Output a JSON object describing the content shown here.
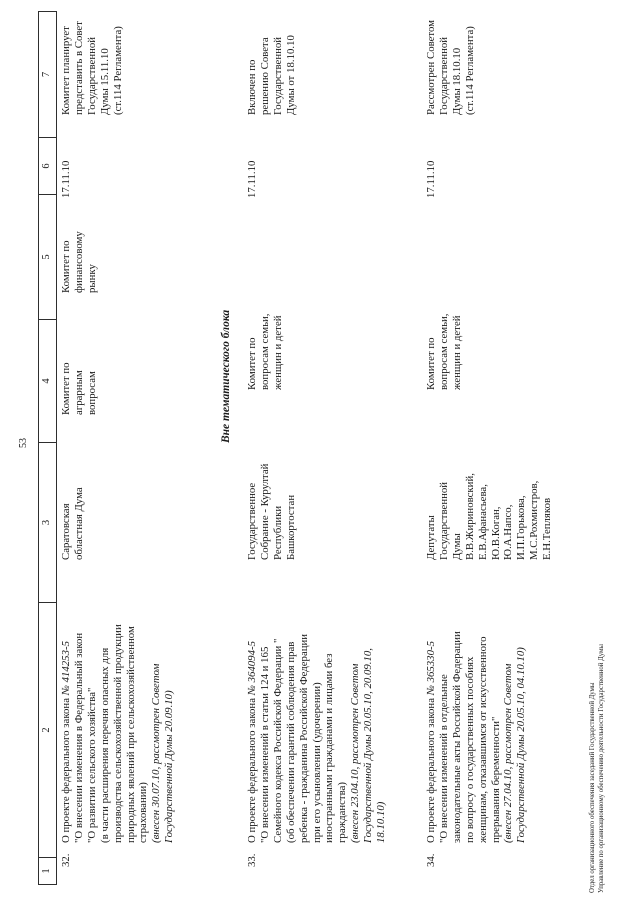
{
  "page": {
    "number": "53",
    "footer_lines": [
      "Отдел организационного обеспечения заседаний Государственной Думы",
      "Управление по организационному обеспечению деятельности Государственной Думы"
    ]
  },
  "table": {
    "column_numbers": [
      "1",
      "2",
      "3",
      "4",
      "5",
      "6",
      "7"
    ],
    "section_header": "Вне тематического блока",
    "rows": [
      {
        "num": "32.",
        "bill_lines": [
          [
            {
              "t": "О проекте федерального закона ",
              "i": false
            },
            {
              "t": "№ 414253-5",
              "i": true
            }
          ],
          [
            {
              "t": "\"О внесении изменения в Федеральный закон",
              "i": false
            }
          ],
          [
            {
              "t": "\"О развитии сельского хозяйства\"",
              "i": false
            }
          ],
          [
            {
              "t": "(в части расширения перечня опасных для",
              "i": false
            }
          ],
          [
            {
              "t": "производства сельскохозяйственной продукции",
              "i": false
            }
          ],
          [
            {
              "t": "природных явлений при сельскохозяйственном",
              "i": false
            }
          ],
          [
            {
              "t": "страховании)",
              "i": false
            }
          ],
          [
            {
              "t": "(внесен 30.07.10, рассмотрен Советом",
              "i": true
            }
          ],
          [
            {
              "t": "Государственной Думы 20.09.10)",
              "i": true
            }
          ]
        ],
        "initiator": [
          "Саратовская",
          "областная Дума"
        ],
        "committee": [
          "Комитет по",
          "аграрным",
          "вопросам"
        ],
        "co_committee": [
          "Комитет по",
          "финансовому",
          "рынку"
        ],
        "date": "17.11.10",
        "status": [
          "Комитет планирует",
          "представить в Совет",
          "Государственной",
          "Думы 15.11.10",
          "(ст.114 Регламента)"
        ]
      },
      {
        "num": "33.",
        "bill_lines": [
          [
            {
              "t": "О проекте федерального закона ",
              "i": false
            },
            {
              "t": "№ 364094-5",
              "i": true
            }
          ],
          [
            {
              "t": "\"О внесении изменений в статьи 124 и 165",
              "i": false
            }
          ],
          [
            {
              "t": "Семейного кодекса Российской Федерации \"",
              "i": false
            }
          ],
          [
            {
              "t": "(об обеспечении гарантий соблюдения прав",
              "i": false
            }
          ],
          [
            {
              "t": "ребенка - гражданина Российской Федерации",
              "i": false
            }
          ],
          [
            {
              "t": "при его усыновлении (удочерении)",
              "i": false
            }
          ],
          [
            {
              "t": "иностранными гражданами и лицами без",
              "i": false
            }
          ],
          [
            {
              "t": "гражданства)",
              "i": false
            }
          ],
          [
            {
              "t": "(внесен 23.04.10, рассмотрен Советом",
              "i": true
            }
          ],
          [
            {
              "t": "Государственной Думы 20.05.10, 20.09.10,",
              "i": true
            }
          ],
          [
            {
              "t": "18.10.10)",
              "i": true
            }
          ]
        ],
        "initiator": [
          "Государственное",
          "Собрание - Курултай",
          "Республики",
          "Башкортостан"
        ],
        "committee": [
          "Комитет по",
          "вопросам семьи,",
          "женщин и детей"
        ],
        "co_committee": null,
        "date": "17.11.10",
        "status": [
          "Включен по",
          "решению Совета",
          "Государственной",
          "Думы от 18.10.10"
        ]
      },
      {
        "num": "34.",
        "bill_lines": [
          [
            {
              "t": "О проекте федерального закона ",
              "i": false
            },
            {
              "t": "№ 365330-5",
              "i": true
            }
          ],
          [
            {
              "t": "\"О внесении изменений в отдельные",
              "i": false
            }
          ],
          [
            {
              "t": "законодательные акты Российской Федерации",
              "i": false
            }
          ],
          [
            {
              "t": "по вопросу о государственных пособиях",
              "i": false
            }
          ],
          [
            {
              "t": "женщинам, отказавшимся от искусственного",
              "i": false
            }
          ],
          [
            {
              "t": "прерывания беременности\"",
              "i": false
            }
          ],
          [
            {
              "t": "(внесен 27.04.10, рассмотрен Советом",
              "i": true
            }
          ],
          [
            {
              "t": "Государственной Думы 20.05.10, 04.10.10)",
              "i": true
            }
          ]
        ],
        "initiator": [
          "Депутаты",
          "Государственной",
          "Думы",
          "В.В.Жириновский,",
          "Е.В.Афанасьева,",
          "Ю.В.Коган,",
          "Ю.А.Напсо,",
          "И.П.Горькова,",
          "М.С.Рохмистров,",
          "Е.Н.Тепляков"
        ],
        "committee": [
          "Комитет по",
          "вопросам семьи,",
          "женщин и детей"
        ],
        "co_committee": null,
        "date": "17.11.10",
        "status": [
          "Рассмотрен Советом",
          "Государственной",
          "Думы 18.10.10",
          "(ст.114 Регламента)"
        ]
      }
    ]
  }
}
